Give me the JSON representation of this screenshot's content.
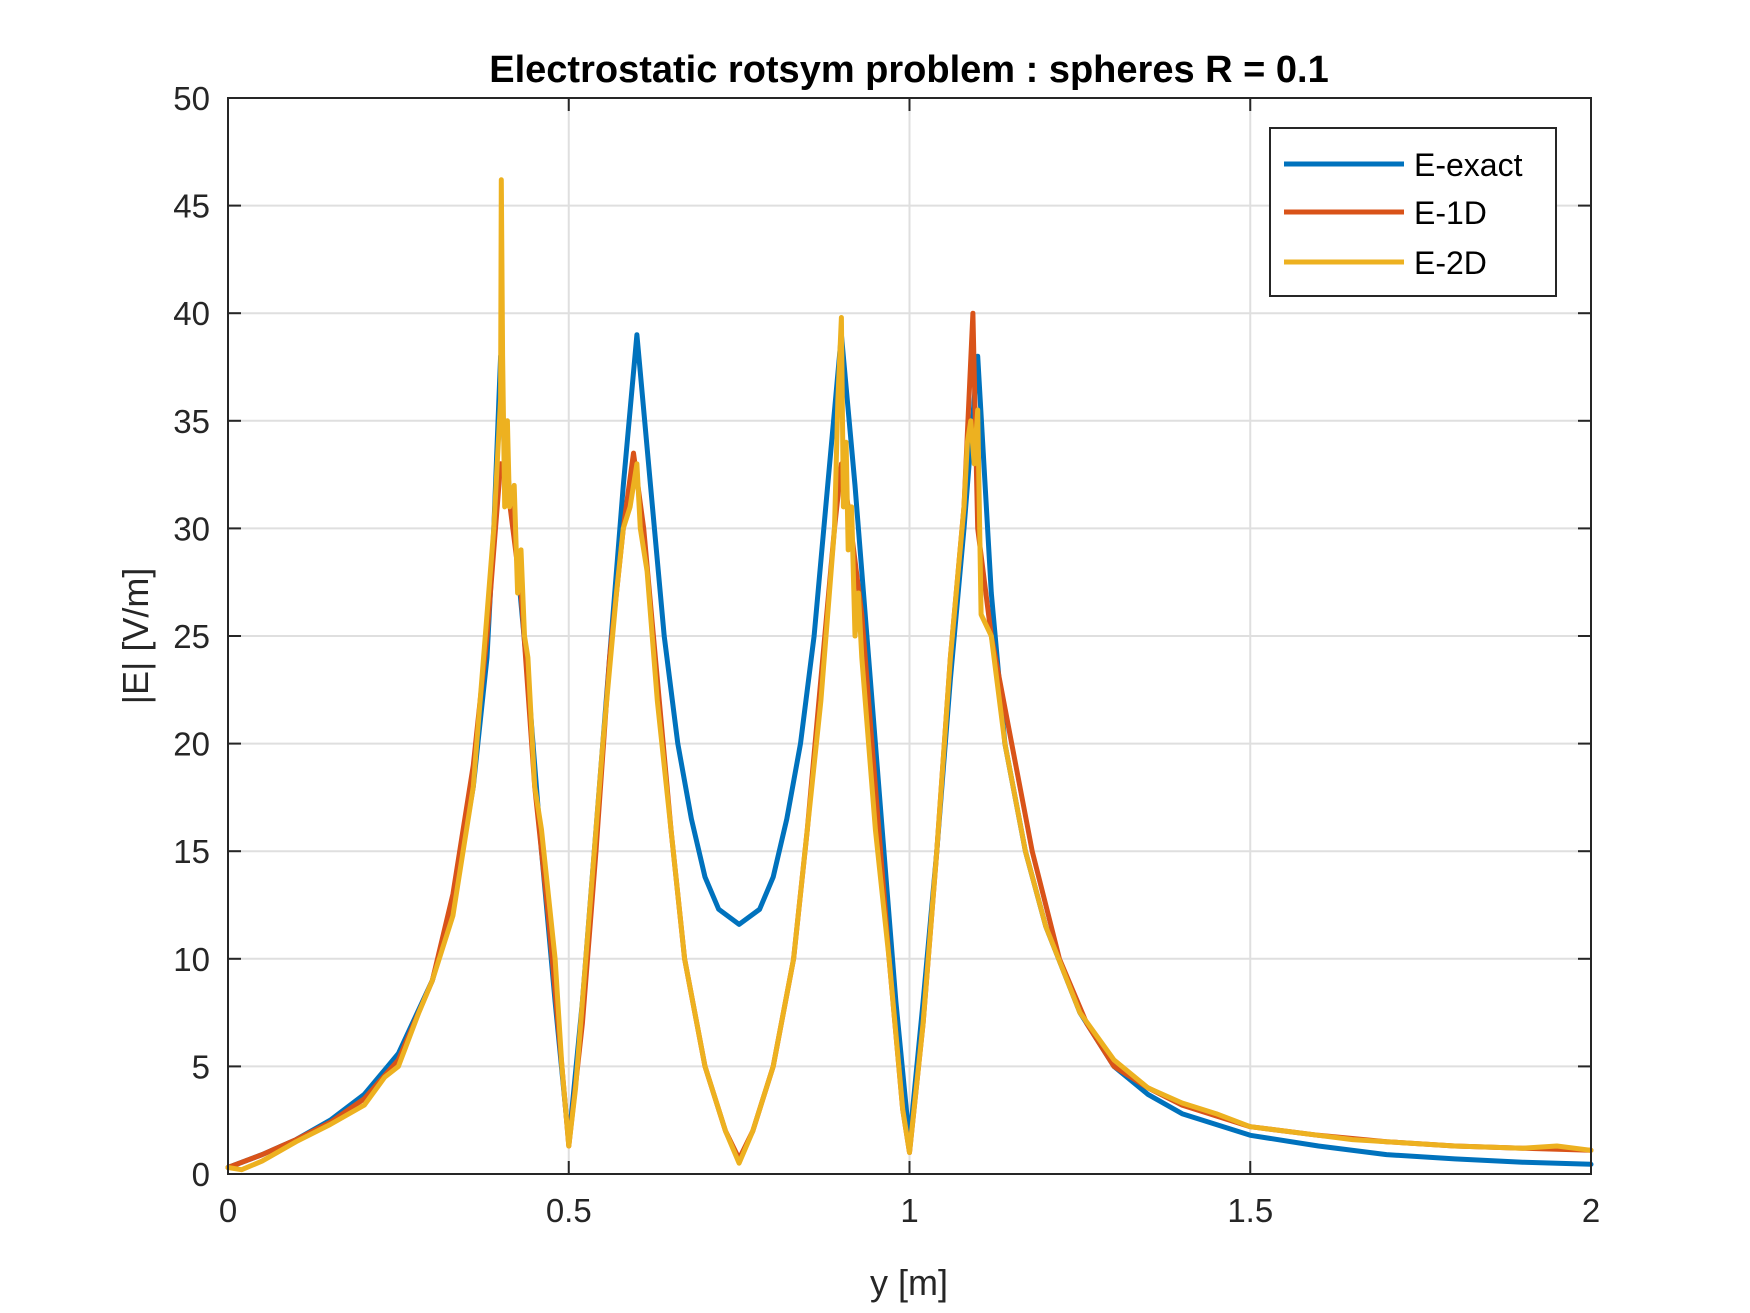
{
  "chart_data": {
    "type": "line",
    "title": "Electrostatic rotsym problem : spheres R = 0.1",
    "xlabel": "y [m]",
    "ylabel": "|E| [V/m]",
    "xlim": [
      0,
      2
    ],
    "ylim": [
      0,
      50
    ],
    "xticks": [
      0,
      0.5,
      1,
      1.5,
      2
    ],
    "xtick_labels": [
      "0",
      "0.5",
      "1",
      "1.5",
      "2"
    ],
    "yticks": [
      0,
      5,
      10,
      15,
      20,
      25,
      30,
      35,
      40,
      45,
      50
    ],
    "ytick_labels": [
      "0",
      "5",
      "10",
      "15",
      "20",
      "25",
      "30",
      "35",
      "40",
      "45",
      "50"
    ],
    "grid": true,
    "legend_position": "top-right",
    "series": [
      {
        "name": "E-exact",
        "color": "#0072BD",
        "points": [
          [
            0,
            0.3
          ],
          [
            0.05,
            0.9
          ],
          [
            0.1,
            1.6
          ],
          [
            0.15,
            2.5
          ],
          [
            0.2,
            3.7
          ],
          [
            0.25,
            5.6
          ],
          [
            0.3,
            9
          ],
          [
            0.33,
            12.5
          ],
          [
            0.36,
            18
          ],
          [
            0.38,
            24
          ],
          [
            0.39,
            30
          ],
          [
            0.4,
            38
          ],
          [
            0.405,
            34
          ],
          [
            0.42,
            30
          ],
          [
            0.44,
            23
          ],
          [
            0.46,
            15
          ],
          [
            0.48,
            8
          ],
          [
            0.5,
            1.5
          ],
          [
            0.52,
            8
          ],
          [
            0.54,
            16
          ],
          [
            0.56,
            24
          ],
          [
            0.58,
            32
          ],
          [
            0.6,
            39
          ],
          [
            0.62,
            32
          ],
          [
            0.64,
            25
          ],
          [
            0.66,
            20
          ],
          [
            0.68,
            16.5
          ],
          [
            0.7,
            13.8
          ],
          [
            0.72,
            12.3
          ],
          [
            0.75,
            11.6
          ],
          [
            0.78,
            12.3
          ],
          [
            0.8,
            13.8
          ],
          [
            0.82,
            16.5
          ],
          [
            0.84,
            20
          ],
          [
            0.86,
            25
          ],
          [
            0.88,
            32
          ],
          [
            0.9,
            39
          ],
          [
            0.92,
            32
          ],
          [
            0.94,
            24
          ],
          [
            0.96,
            16
          ],
          [
            0.98,
            8
          ],
          [
            1.0,
            1.5
          ],
          [
            1.02,
            8
          ],
          [
            1.04,
            15
          ],
          [
            1.06,
            23
          ],
          [
            1.08,
            30
          ],
          [
            1.1,
            38
          ],
          [
            1.12,
            27
          ],
          [
            1.14,
            20
          ],
          [
            1.17,
            15
          ],
          [
            1.2,
            11.5
          ],
          [
            1.25,
            7.5
          ],
          [
            1.3,
            5
          ],
          [
            1.35,
            3.7
          ],
          [
            1.4,
            2.8
          ],
          [
            1.5,
            1.8
          ],
          [
            1.6,
            1.3
          ],
          [
            1.7,
            0.9
          ],
          [
            1.8,
            0.7
          ],
          [
            1.9,
            0.55
          ],
          [
            2.0,
            0.45
          ]
        ]
      },
      {
        "name": "E-1D",
        "color": "#D95319",
        "points": [
          [
            0,
            0.3
          ],
          [
            0.05,
            0.9
          ],
          [
            0.1,
            1.6
          ],
          [
            0.15,
            2.4
          ],
          [
            0.2,
            3.5
          ],
          [
            0.25,
            5.3
          ],
          [
            0.3,
            9
          ],
          [
            0.33,
            13
          ],
          [
            0.36,
            19
          ],
          [
            0.38,
            25
          ],
          [
            0.39,
            29
          ],
          [
            0.4,
            33
          ],
          [
            0.41,
            32
          ],
          [
            0.43,
            27
          ],
          [
            0.45,
            18
          ],
          [
            0.47,
            12
          ],
          [
            0.49,
            5
          ],
          [
            0.5,
            1.3
          ],
          [
            0.52,
            7
          ],
          [
            0.54,
            15
          ],
          [
            0.56,
            24
          ],
          [
            0.58,
            30
          ],
          [
            0.595,
            33.5
          ],
          [
            0.61,
            30
          ],
          [
            0.63,
            23
          ],
          [
            0.65,
            16
          ],
          [
            0.67,
            10
          ],
          [
            0.7,
            5
          ],
          [
            0.73,
            2
          ],
          [
            0.75,
            0.7
          ],
          [
            0.77,
            2
          ],
          [
            0.8,
            5
          ],
          [
            0.83,
            10
          ],
          [
            0.85,
            16
          ],
          [
            0.87,
            23
          ],
          [
            0.89,
            30
          ],
          [
            0.9,
            33
          ],
          [
            0.91,
            31
          ],
          [
            0.93,
            26
          ],
          [
            0.95,
            18
          ],
          [
            0.97,
            10
          ],
          [
            0.99,
            3
          ],
          [
            1.0,
            1
          ],
          [
            1.02,
            7
          ],
          [
            1.04,
            15
          ],
          [
            1.06,
            24
          ],
          [
            1.08,
            31
          ],
          [
            1.093,
            40
          ],
          [
            1.1,
            30
          ],
          [
            1.12,
            25
          ],
          [
            1.15,
            20
          ],
          [
            1.18,
            15
          ],
          [
            1.22,
            10
          ],
          [
            1.26,
            7
          ],
          [
            1.3,
            5
          ],
          [
            1.35,
            4
          ],
          [
            1.4,
            3.2
          ],
          [
            1.5,
            2.2
          ],
          [
            1.6,
            1.8
          ],
          [
            1.7,
            1.5
          ],
          [
            1.8,
            1.3
          ],
          [
            1.9,
            1.2
          ],
          [
            2.0,
            1.1
          ]
        ]
      },
      {
        "name": "E-2D",
        "color": "#EDB120",
        "points": [
          [
            0,
            0.3
          ],
          [
            0.02,
            0.2
          ],
          [
            0.05,
            0.6
          ],
          [
            0.1,
            1.5
          ],
          [
            0.15,
            2.3
          ],
          [
            0.2,
            3.2
          ],
          [
            0.23,
            4.5
          ],
          [
            0.25,
            5
          ],
          [
            0.28,
            7.5
          ],
          [
            0.3,
            9
          ],
          [
            0.33,
            12
          ],
          [
            0.36,
            18
          ],
          [
            0.38,
            26
          ],
          [
            0.39,
            30
          ],
          [
            0.395,
            33
          ],
          [
            0.4,
            36
          ],
          [
            0.401,
            46.2
          ],
          [
            0.403,
            38
          ],
          [
            0.406,
            31
          ],
          [
            0.41,
            35
          ],
          [
            0.413,
            31
          ],
          [
            0.42,
            32
          ],
          [
            0.425,
            27
          ],
          [
            0.43,
            29
          ],
          [
            0.435,
            25
          ],
          [
            0.44,
            24
          ],
          [
            0.45,
            18
          ],
          [
            0.46,
            16
          ],
          [
            0.47,
            13
          ],
          [
            0.48,
            10
          ],
          [
            0.49,
            5
          ],
          [
            0.5,
            1.3
          ],
          [
            0.51,
            4
          ],
          [
            0.52,
            8
          ],
          [
            0.54,
            16
          ],
          [
            0.55,
            20
          ],
          [
            0.57,
            27
          ],
          [
            0.58,
            30
          ],
          [
            0.59,
            31
          ],
          [
            0.6,
            33
          ],
          [
            0.605,
            30
          ],
          [
            0.615,
            28
          ],
          [
            0.63,
            22
          ],
          [
            0.65,
            16
          ],
          [
            0.67,
            10
          ],
          [
            0.7,
            5
          ],
          [
            0.73,
            2
          ],
          [
            0.75,
            0.5
          ],
          [
            0.77,
            2
          ],
          [
            0.8,
            5
          ],
          [
            0.83,
            10
          ],
          [
            0.85,
            16
          ],
          [
            0.87,
            22
          ],
          [
            0.88,
            26
          ],
          [
            0.89,
            30
          ],
          [
            0.895,
            36
          ],
          [
            0.9,
            39.8
          ],
          [
            0.903,
            31
          ],
          [
            0.907,
            34
          ],
          [
            0.91,
            29
          ],
          [
            0.915,
            31
          ],
          [
            0.92,
            25
          ],
          [
            0.925,
            27
          ],
          [
            0.93,
            24
          ],
          [
            0.95,
            16
          ],
          [
            0.97,
            10
          ],
          [
            0.99,
            3
          ],
          [
            1.0,
            1
          ],
          [
            1.02,
            7
          ],
          [
            1.04,
            15
          ],
          [
            1.06,
            24
          ],
          [
            1.08,
            31
          ],
          [
            1.085,
            34
          ],
          [
            1.09,
            35
          ],
          [
            1.095,
            33
          ],
          [
            1.1,
            35.5
          ],
          [
            1.105,
            26
          ],
          [
            1.12,
            25
          ],
          [
            1.14,
            20
          ],
          [
            1.17,
            15
          ],
          [
            1.2,
            11.5
          ],
          [
            1.25,
            7.5
          ],
          [
            1.3,
            5.3
          ],
          [
            1.35,
            4
          ],
          [
            1.4,
            3.3
          ],
          [
            1.45,
            2.8
          ],
          [
            1.5,
            2.2
          ],
          [
            1.6,
            1.8
          ],
          [
            1.65,
            1.6
          ],
          [
            1.7,
            1.5
          ],
          [
            1.8,
            1.3
          ],
          [
            1.9,
            1.2
          ],
          [
            1.95,
            1.3
          ],
          [
            2.0,
            1.1
          ]
        ]
      }
    ]
  }
}
